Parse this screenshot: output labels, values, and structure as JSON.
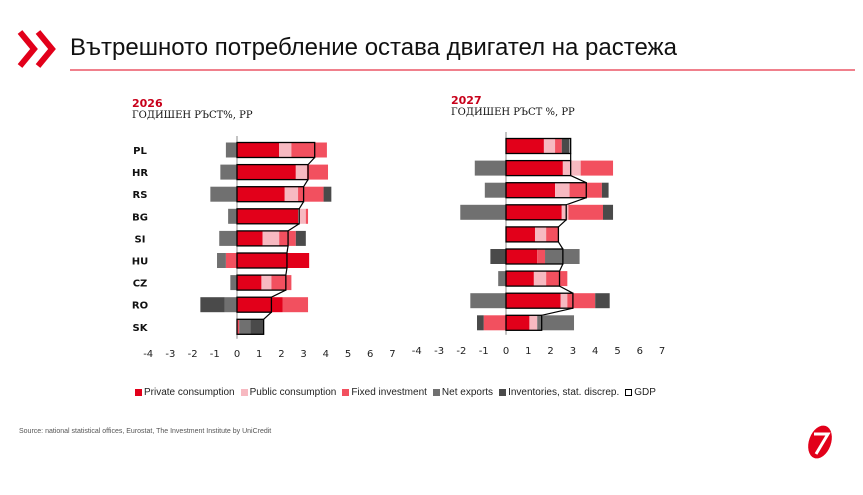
{
  "title": "Вътрешното потребление остава двигател на  растежа",
  "source": "Source: national statistical offices, Eurostat, The Investment Institute by UniCredit",
  "colors": {
    "private": "#e2001a",
    "public": "#f7b9c1",
    "fixed": "#f2505f",
    "net": "#707070",
    "inv": "#4a4a4a",
    "brand": "#e2001a"
  },
  "chart_data": [
    {
      "type": "bar",
      "year": "2026",
      "subtitle": "ГОДИШЕН РЪСТ%, PP",
      "categories": [
        "PL",
        "HR",
        "RS",
        "BG",
        "SI",
        "HU",
        "CZ",
        "RO",
        "SK"
      ],
      "xlim": [
        -4,
        7
      ],
      "ticks": [
        "-4",
        "-3",
        "-2",
        "-1",
        "0",
        "1",
        "2",
        "3",
        "4",
        "5",
        "6",
        "7"
      ],
      "series": [
        {
          "name": "Private consumption",
          "key": "private",
          "values": [
            1.9,
            2.65,
            2.15,
            2.75,
            1.15,
            3.25,
            1.1,
            2.05,
            0.0
          ]
        },
        {
          "name": "Public consumption",
          "key": "public",
          "values": [
            0.55,
            0.5,
            0.6,
            0.35,
            0.75,
            0,
            0.45,
            0,
            0
          ]
        },
        {
          "name": "Fixed investment",
          "key": "fixed",
          "values": [
            1.6,
            0.95,
            1.15,
            0.1,
            0.75,
            -0.5,
            0.9,
            1.15,
            0.1
          ]
        },
        {
          "name": "Net exports",
          "key": "net",
          "values": [
            -0.5,
            -0.75,
            -1.2,
            -0.4,
            -0.8,
            -0.4,
            -0.3,
            -0.55,
            0.5
          ]
        },
        {
          "name": "Inventories, stat. discrep.",
          "key": "inv",
          "values": [
            0,
            0,
            0.35,
            0,
            0.45,
            0,
            0,
            -1.1,
            0.6
          ]
        }
      ],
      "gdp": [
        3.5,
        3.2,
        3.0,
        2.8,
        2.3,
        2.25,
        2.2,
        1.55,
        1.2
      ]
    },
    {
      "type": "bar",
      "year": "2027",
      "subtitle": "ГОДИШЕН  РЪСТ %, PP",
      "categories": [
        "PL",
        "HR",
        "RS",
        "BG",
        "SI",
        "HU",
        "CZ",
        "RO",
        "SK"
      ],
      "xlim": [
        -4,
        7
      ],
      "ticks": [
        "-4",
        "-3",
        "-2",
        "-1",
        "0",
        "1",
        "2",
        "3",
        "4",
        "5",
        "6",
        "7"
      ],
      "series": [
        {
          "name": "Private consumption",
          "key": "private",
          "values": [
            1.7,
            2.55,
            2.2,
            2.5,
            1.3,
            1.4,
            1.25,
            2.45,
            1.05
          ]
        },
        {
          "name": "Public consumption",
          "key": "public",
          "values": [
            0.5,
            0.8,
            0.65,
            0.3,
            0.5,
            0,
            0.55,
            0.3,
            0.35
          ]
        },
        {
          "name": "Fixed investment",
          "key": "fixed",
          "values": [
            0.3,
            1.45,
            1.45,
            1.55,
            0.55,
            0.35,
            0.95,
            1.25,
            -1.0
          ]
        },
        {
          "name": "Net exports",
          "key": "net",
          "values": [
            0,
            -1.4,
            -0.95,
            -2.05,
            0,
            1.55,
            -0.35,
            -1.6,
            1.65
          ]
        },
        {
          "name": "Inventories, stat. discrep.",
          "key": "inv",
          "values": [
            0.35,
            0,
            0.3,
            0.45,
            0,
            -0.7,
            0,
            0.65,
            -0.3
          ]
        }
      ],
      "gdp": [
        2.9,
        2.9,
        3.6,
        2.7,
        2.35,
        2.55,
        2.4,
        3.0,
        1.6
      ]
    }
  ],
  "legend": [
    "Private consumption",
    "Public consumption",
    "Fixed investment",
    "Net exports",
    "Inventories, stat. discrep.",
    "GDP"
  ]
}
